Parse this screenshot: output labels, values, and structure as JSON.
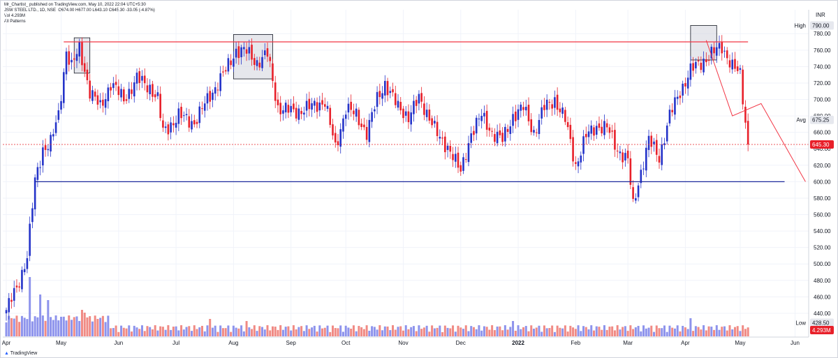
{
  "header": {
    "published": "Mr_Chartist_ published on TradingView.com, May 10, 2022 22:04 UTC+5:30",
    "ticker": "JSW STEEL LTD., 1D, NSE",
    "ohlc": "O674.00 H677.00 L643.10 C645.30 -33.05 (-4.87%)",
    "vol": "Vol  4.293M",
    "patterns": "All Patterns"
  },
  "footer": {
    "brand": "TradingView"
  },
  "colors": {
    "up": "#2433c9",
    "down": "#e8202a",
    "vol_up": "#8d93ec",
    "vol_down": "#f08a84",
    "resistance": "#f23645",
    "support": "#1e2a9c",
    "box_fill": "#d1d4dc",
    "grid": "#f0f3fa"
  },
  "chart_data": {
    "type": "candlestick",
    "currency": "INR",
    "y_range": [
      415,
      800
    ],
    "x_labels": [
      "Apr",
      "May",
      "Jun",
      "Jul",
      "Aug",
      "Sep",
      "Oct",
      "Nov",
      "Dec",
      "2022",
      "Feb",
      "Mar",
      "Apr",
      "May",
      "Jun"
    ],
    "x_label_bars": [
      0,
      21,
      43,
      65,
      87,
      109,
      130,
      152,
      174,
      196,
      218,
      238,
      260,
      281,
      302
    ],
    "y_ticks": [
      440,
      460,
      480,
      500,
      520,
      540,
      560,
      580,
      600,
      620,
      640,
      660,
      680,
      700,
      720,
      740,
      760,
      780
    ],
    "price_labels": [
      {
        "name": "High",
        "value": 790.0,
        "text": "790.00"
      },
      {
        "name": "Avg",
        "value": 675.25,
        "text": "675.25"
      },
      {
        "name": "Last",
        "value": 645.3,
        "text": "645.30"
      },
      {
        "name": "Low",
        "value": 428.5,
        "text": "428.50"
      }
    ],
    "volume_last": "4.293M",
    "bar_count": 285,
    "anchors": [
      [
        0,
        444
      ],
      [
        4,
        470
      ],
      [
        8,
        510
      ],
      [
        11,
        600
      ],
      [
        14,
        640
      ],
      [
        17,
        648
      ],
      [
        20,
        680
      ],
      [
        23,
        760
      ],
      [
        25,
        740
      ],
      [
        28,
        762
      ],
      [
        32,
        710
      ],
      [
        36,
        690
      ],
      [
        40,
        720
      ],
      [
        45,
        700
      ],
      [
        50,
        725
      ],
      [
        55,
        715
      ],
      [
        58,
        700
      ],
      [
        60,
        660
      ],
      [
        66,
        680
      ],
      [
        72,
        672
      ],
      [
        78,
        705
      ],
      [
        84,
        735
      ],
      [
        88,
        760
      ],
      [
        92,
        758
      ],
      [
        96,
        745
      ],
      [
        100,
        755
      ],
      [
        104,
        690
      ],
      [
        110,
        685
      ],
      [
        116,
        690
      ],
      [
        122,
        698
      ],
      [
        126,
        640
      ],
      [
        130,
        690
      ],
      [
        134,
        680
      ],
      [
        138,
        660
      ],
      [
        142,
        700
      ],
      [
        145,
        720
      ],
      [
        150,
        690
      ],
      [
        154,
        680
      ],
      [
        158,
        700
      ],
      [
        162,
        680
      ],
      [
        166,
        650
      ],
      [
        170,
        640
      ],
      [
        174,
        610
      ],
      [
        178,
        660
      ],
      [
        182,
        680
      ],
      [
        186,
        660
      ],
      [
        190,
        650
      ],
      [
        194,
        680
      ],
      [
        198,
        690
      ],
      [
        202,
        660
      ],
      [
        206,
        690
      ],
      [
        210,
        700
      ],
      [
        214,
        675
      ],
      [
        218,
        620
      ],
      [
        222,
        655
      ],
      [
        226,
        668
      ],
      [
        230,
        665
      ],
      [
        234,
        640
      ],
      [
        238,
        625
      ],
      [
        240,
        570
      ],
      [
        242,
        600
      ],
      [
        246,
        650
      ],
      [
        250,
        630
      ],
      [
        254,
        680
      ],
      [
        258,
        710
      ],
      [
        262,
        735
      ],
      [
        266,
        745
      ],
      [
        270,
        755
      ],
      [
        274,
        765
      ],
      [
        278,
        740
      ],
      [
        281,
        730
      ],
      [
        284,
        645.3
      ]
    ],
    "volume_spikes": [
      [
        9,
        85
      ],
      [
        13,
        60
      ],
      [
        16,
        52
      ],
      [
        29,
        38
      ],
      [
        30,
        34
      ],
      [
        78,
        25
      ],
      [
        92,
        22
      ],
      [
        194,
        22
      ],
      [
        262,
        26
      ]
    ],
    "levels": [
      {
        "name": "resistance",
        "value": 770,
        "from_bar": 22,
        "to_bar": 284
      },
      {
        "name": "support",
        "value": 600,
        "from_bar": 11,
        "to_bar": 298
      }
    ],
    "boxes": [
      {
        "from_bar": 26,
        "to_bar": 32,
        "low": 732,
        "high": 775
      },
      {
        "from_bar": 87,
        "to_bar": 102,
        "low": 725,
        "high": 779
      },
      {
        "from_bar": 262,
        "to_bar": 272,
        "low": 748,
        "high": 790
      }
    ],
    "projection": [
      [
        268,
        772
      ],
      [
        278,
        680
      ],
      [
        289,
        695
      ],
      [
        306,
        600
      ]
    ]
  }
}
